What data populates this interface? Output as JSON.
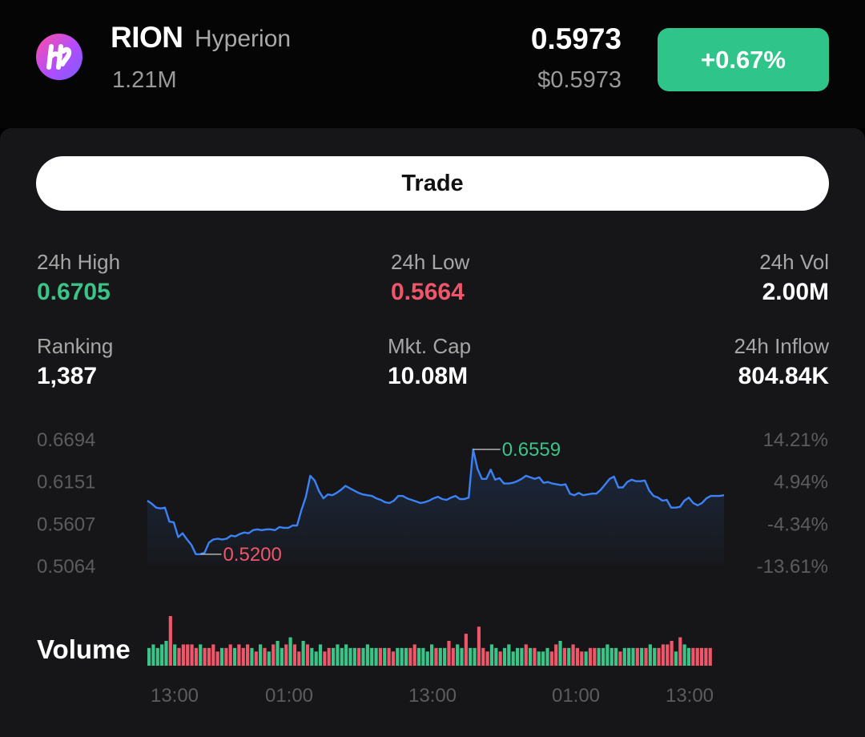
{
  "token": {
    "symbol": "RION",
    "name": "Hyperion",
    "volume": "1.21M",
    "price": "0.5973",
    "price_usd": "$0.5973",
    "change": "+0.67%"
  },
  "colors": {
    "green": "#3ac488",
    "red": "#f0566a",
    "line": "#3b82f6",
    "badge": "#2fc58a"
  },
  "trade_button": {
    "label": "Trade"
  },
  "stats": {
    "high": {
      "label": "24h High",
      "value": "0.6705"
    },
    "low": {
      "label": "24h Low",
      "value": "0.5664"
    },
    "vol": {
      "label": "24h Vol",
      "value": "2.00M"
    },
    "ranking": {
      "label": "Ranking",
      "value": "1,387"
    },
    "mktcap": {
      "label": "Mkt. Cap",
      "value": "10.08M"
    },
    "inflow": {
      "label": "24h Inflow",
      "value": "804.84K"
    }
  },
  "volume_label": "Volume",
  "chart_data": {
    "type": "line",
    "y_ticks": [
      "0.6694",
      "0.6151",
      "0.5607",
      "0.5064"
    ],
    "y_tick_values": [
      0.6694,
      0.6151,
      0.5607,
      0.5064
    ],
    "pct_ticks": [
      "14.21%",
      "4.94%",
      "-4.34%",
      "-13.61%"
    ],
    "x_ticks": [
      "13:00",
      "01:00",
      "13:00",
      "01:00",
      "13:00"
    ],
    "max_annotation": "0.6559",
    "min_annotation": "0.5200",
    "price": [
      0.59,
      0.586,
      0.581,
      0.58,
      0.581,
      0.563,
      0.562,
      0.543,
      0.548,
      0.54,
      0.533,
      0.521,
      0.521,
      0.523,
      0.536,
      0.54,
      0.541,
      0.54,
      0.541,
      0.545,
      0.544,
      0.547,
      0.549,
      0.548,
      0.552,
      0.553,
      0.552,
      0.553,
      0.553,
      0.552,
      0.556,
      0.555,
      0.555,
      0.558,
      0.558,
      0.578,
      0.595,
      0.622,
      0.616,
      0.602,
      0.593,
      0.598,
      0.597,
      0.6,
      0.604,
      0.609,
      0.606,
      0.603,
      0.6,
      0.598,
      0.597,
      0.596,
      0.593,
      0.591,
      0.588,
      0.587,
      0.59,
      0.596,
      0.596,
      0.593,
      0.591,
      0.589,
      0.587,
      0.588,
      0.59,
      0.593,
      0.595,
      0.592,
      0.591,
      0.594,
      0.596,
      0.592,
      0.592,
      0.594,
      0.656,
      0.631,
      0.618,
      0.618,
      0.63,
      0.617,
      0.619,
      0.612,
      0.612,
      0.613,
      0.615,
      0.618,
      0.622,
      0.62,
      0.618,
      0.62,
      0.613,
      0.614,
      0.612,
      0.611,
      0.61,
      0.611,
      0.599,
      0.597,
      0.6,
      0.597,
      0.598,
      0.599,
      0.599,
      0.604,
      0.611,
      0.618,
      0.621,
      0.607,
      0.607,
      0.614,
      0.617,
      0.615,
      0.615,
      0.616,
      0.603,
      0.596,
      0.594,
      0.59,
      0.591,
      0.581,
      0.581,
      0.582,
      0.59,
      0.594,
      0.587,
      0.584,
      0.587,
      0.593,
      0.596,
      0.596,
      0.596,
      0.597
    ],
    "volume": [
      5,
      6,
      5,
      6,
      7,
      14,
      6,
      5,
      6,
      6,
      6,
      5,
      6,
      5,
      5,
      6,
      4,
      5,
      5,
      6,
      5,
      6,
      5,
      6,
      5,
      4,
      6,
      5,
      4,
      6,
      7,
      5,
      6,
      8,
      6,
      4,
      7,
      6,
      5,
      4,
      6,
      4,
      5,
      5,
      6,
      5,
      6,
      5,
      5,
      5,
      5,
      6,
      5,
      5,
      5,
      5,
      5,
      4,
      5,
      5,
      5,
      5,
      6,
      5,
      5,
      4,
      6,
      5,
      5,
      5,
      7,
      5,
      6,
      5,
      9,
      5,
      5,
      11,
      5,
      4,
      6,
      5,
      4,
      5,
      6,
      4,
      5,
      5,
      6,
      5,
      5,
      4,
      4,
      5,
      4,
      6,
      7,
      5,
      5,
      6,
      5,
      4,
      4,
      5,
      5,
      5,
      5,
      6,
      5,
      5,
      4,
      5,
      5,
      5,
      5,
      5,
      5,
      6,
      5,
      5,
      6,
      6,
      7,
      4,
      8,
      6,
      5,
      5,
      5,
      5,
      5,
      5
    ],
    "volume_up": [
      1,
      1,
      1,
      1,
      1,
      0,
      1,
      0,
      0,
      0,
      0,
      0,
      1,
      0,
      0,
      0,
      0,
      1,
      0,
      0,
      1,
      0,
      0,
      0,
      1,
      0,
      1,
      0,
      1,
      0,
      1,
      1,
      0,
      1,
      0,
      0,
      1,
      0,
      1,
      1,
      1,
      0,
      0,
      1,
      1,
      1,
      1,
      1,
      1,
      0,
      1,
      1,
      1,
      1,
      0,
      1,
      0,
      0,
      1,
      1,
      1,
      0,
      0,
      1,
      1,
      1,
      1,
      0,
      1,
      1,
      0,
      0,
      1,
      1,
      0,
      1,
      1,
      0,
      0,
      0,
      1,
      1,
      0,
      1,
      1,
      1,
      1,
      1,
      0,
      1,
      0,
      1,
      1,
      1,
      0,
      0,
      1,
      0,
      1,
      0,
      0,
      0,
      1,
      0,
      0,
      1,
      1,
      1,
      1,
      1,
      0,
      1,
      1,
      1,
      0,
      1,
      0,
      1,
      1,
      0,
      0,
      0,
      0,
      1,
      0,
      1,
      1,
      0,
      0,
      0,
      0,
      0
    ]
  }
}
